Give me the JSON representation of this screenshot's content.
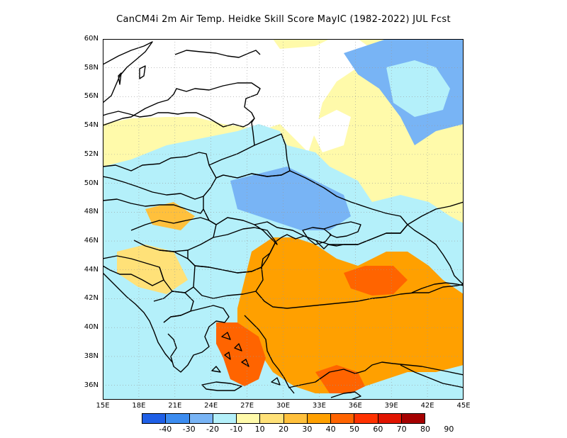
{
  "title": "CanCM4i  2m Air Temp. Heidke Skill Score MayIC (1982-2022) JUL Fcst",
  "lat_labels": [
    "60N",
    "58N",
    "56N",
    "54N",
    "52N",
    "50N",
    "48N",
    "46N",
    "44N",
    "42N",
    "40N",
    "38N",
    "36N"
  ],
  "lon_labels": [
    "15E",
    "18E",
    "21E",
    "24E",
    "27E",
    "30E",
    "33E",
    "36E",
    "39E",
    "42E",
    "45E"
  ],
  "extent": {
    "lon_min": 15,
    "lon_max": 45,
    "lat_min": 35,
    "lat_max": 60
  },
  "colorbar": {
    "labels": [
      "-40",
      "-30",
      "-20",
      "-10",
      "10",
      "20",
      "30",
      "40",
      "50",
      "60",
      "70",
      "80",
      "90"
    ],
    "colors": [
      "#1f5fe6",
      "#3c8cf0",
      "#78b4f5",
      "#b4f0fa",
      "#ffffff",
      "#fffaaa",
      "#ffe178",
      "#ffc03c",
      "#ffa000",
      "#ff6400",
      "#ff3200",
      "#e11400",
      "#a50000"
    ]
  },
  "map_style": {
    "ocean": "#ffffff",
    "border": "#000000",
    "grid": "#999999"
  }
}
